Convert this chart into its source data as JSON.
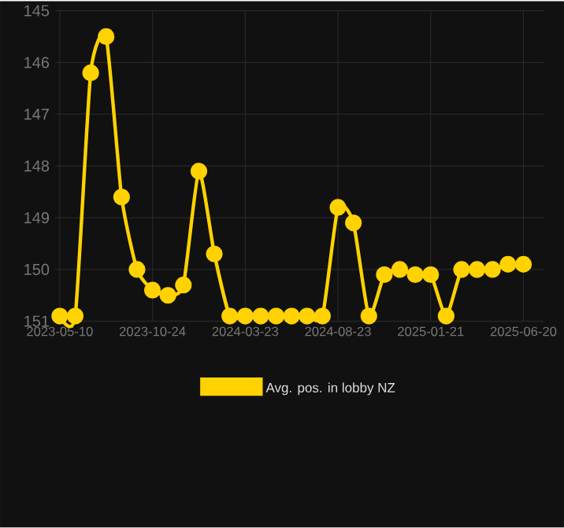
{
  "chart_data": {
    "type": "line",
    "categories": [
      "2023-05-10",
      null,
      null,
      null,
      null,
      null,
      "2023-10-24",
      null,
      null,
      null,
      null,
      null,
      "2024-03-23",
      null,
      null,
      null,
      null,
      null,
      "2024-08-23",
      null,
      null,
      null,
      null,
      null,
      "2025-01-21",
      null,
      null,
      null,
      null,
      null,
      "2025-06-20"
    ],
    "series": [
      {
        "name": "Avg. pos. in lobby NZ",
        "color": "#ffd200",
        "values": [
          150.9,
          150.9,
          146.2,
          145.5,
          148.6,
          150.0,
          150.4,
          150.5,
          150.3,
          148.1,
          149.7,
          150.9,
          150.9,
          150.9,
          150.9,
          150.9,
          150.9,
          150.9,
          148.8,
          149.1,
          150.9,
          150.1,
          150.0,
          150.1,
          150.1,
          150.9,
          150.0,
          150.0,
          150.0,
          149.9,
          149.9
        ]
      }
    ],
    "ylim": [
      151,
      145
    ],
    "yticks": [
      145,
      146,
      147,
      148,
      149,
      150,
      151
    ],
    "grid": true,
    "legend": "bottom",
    "marker": "circle",
    "line_style": "solid"
  }
}
